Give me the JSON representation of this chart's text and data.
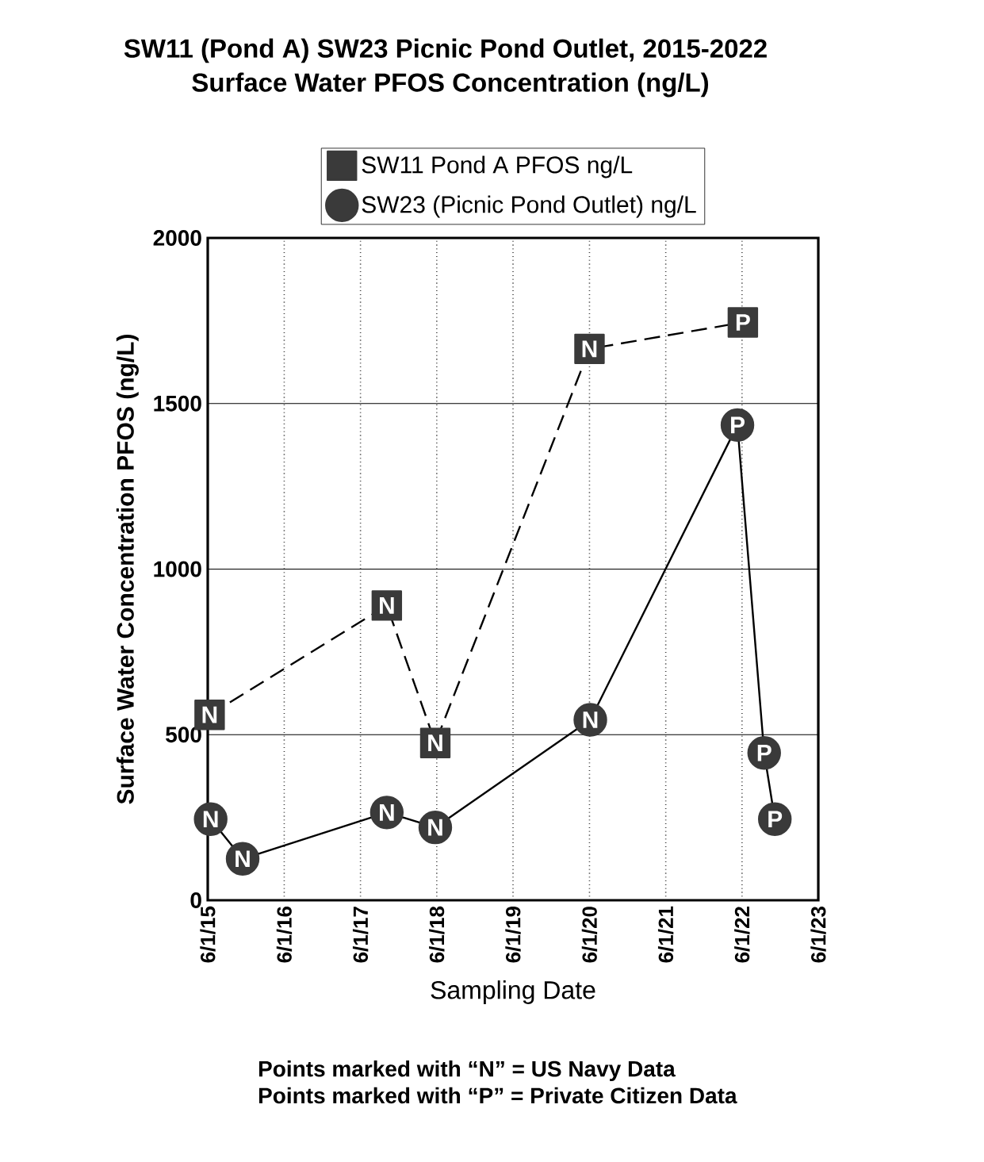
{
  "chart_data": {
    "type": "line",
    "title": "SW11 (Pond A) SW23 Picnic Pond Outlet, 2015-2022",
    "subtitle": "Surface Water PFOS Concentration (ng/L)",
    "xlabel": "Sampling Date",
    "ylabel": "Surface Water Concentration PFOS (ng/L)",
    "xlim": [
      "2015-06-01",
      "2023-06-01"
    ],
    "xticks": [
      {
        "value": "2015-06-01",
        "label": "6/1/15"
      },
      {
        "value": "2016-06-01",
        "label": "6/1/16"
      },
      {
        "value": "2017-06-01",
        "label": "6/1/17"
      },
      {
        "value": "2018-06-01",
        "label": "6/1/18"
      },
      {
        "value": "2019-06-01",
        "label": "6/1/19"
      },
      {
        "value": "2020-06-01",
        "label": "6/1/20"
      },
      {
        "value": "2021-06-01",
        "label": "6/1/21"
      },
      {
        "value": "2022-06-01",
        "label": "6/1/22"
      },
      {
        "value": "2023-06-01",
        "label": "6/1/23"
      }
    ],
    "ylim": [
      0,
      2000
    ],
    "yticks": [
      0,
      500,
      1000,
      1500,
      2000
    ],
    "grid": true,
    "legend": "top",
    "series": [
      {
        "name": "SW11 Pond A PFOS ng/L",
        "color": "#3a3a3a",
        "marker": "square",
        "line_style": "dashed",
        "x": [
          "2015-06-10",
          "2017-10-05",
          "2018-05-25",
          "2020-06-01",
          "2022-06-05"
        ],
        "values": [
          560,
          890,
          475,
          1665,
          1745
        ]
      },
      {
        "name": "SW23 (Picnic Pond Outlet) ng/L",
        "color": "#3a3a3a",
        "marker": "circle",
        "line_style": "solid",
        "x": [
          "2015-06-15",
          "2015-11-15",
          "2017-10-05",
          "2018-05-25",
          "2020-06-05",
          "2022-05-10",
          "2022-09-15",
          "2022-11-05"
        ],
        "values": [
          245,
          125,
          265,
          220,
          545,
          1435,
          445,
          245
        ]
      }
    ],
    "annotations": [
      {
        "text": "N",
        "x": "2015-06-10",
        "y": 560
      },
      {
        "text": "N",
        "x": "2017-10-05",
        "y": 890
      },
      {
        "text": "N",
        "x": "2018-05-25",
        "y": 475
      },
      {
        "text": "N",
        "x": "2020-06-01",
        "y": 1665
      },
      {
        "text": "P",
        "x": "2022-06-05",
        "y": 1745
      },
      {
        "text": "N",
        "x": "2015-06-15",
        "y": 245
      },
      {
        "text": "N",
        "x": "2015-11-15",
        "y": 125
      },
      {
        "text": "N",
        "x": "2017-10-05",
        "y": 265
      },
      {
        "text": "N",
        "x": "2018-05-25",
        "y": 220
      },
      {
        "text": "N",
        "x": "2020-06-05",
        "y": 545
      },
      {
        "text": "P",
        "x": "2022-05-10",
        "y": 1435
      },
      {
        "text": "P",
        "x": "2022-09-15",
        "y": 445
      },
      {
        "text": "P",
        "x": "2022-11-05",
        "y": 245
      },
      "Points marked with “N” = US Navy Data",
      "Points marked with “P” = Private Citizen Data"
    ]
  }
}
